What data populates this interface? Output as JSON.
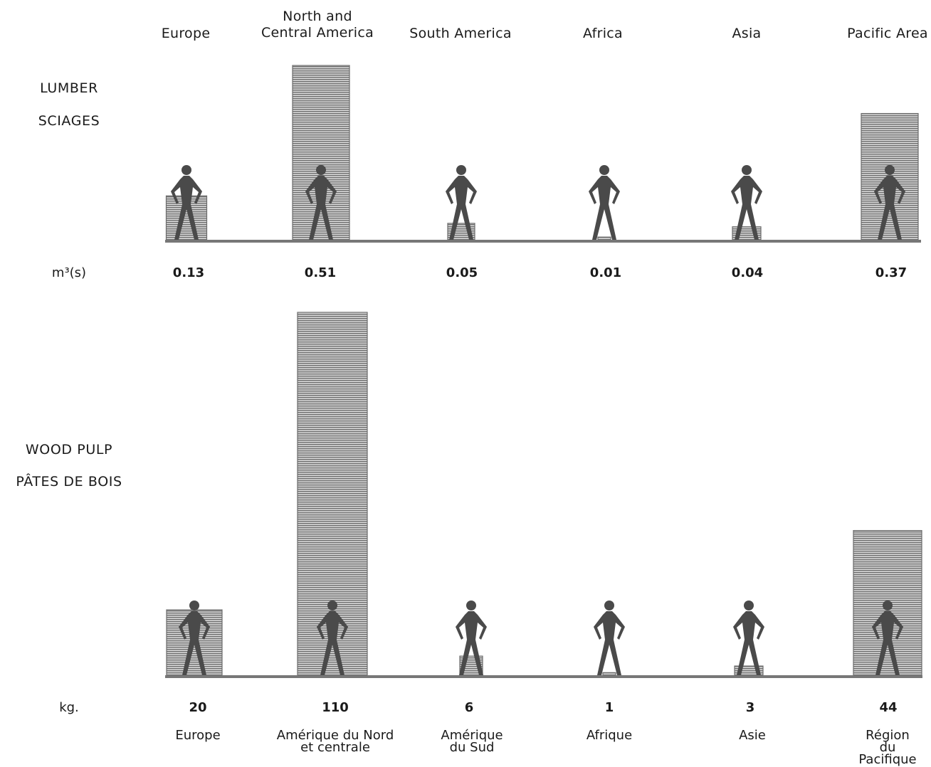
{
  "chart_data": [
    {
      "type": "bar",
      "row_label_line1": "LUMBER",
      "row_label_line2": "SCIAGES",
      "unit": "m³(s)",
      "categories": [
        "Europe",
        "North and\nCentral America",
        "South America",
        "Africa",
        "Asia",
        "Pacific Area"
      ],
      "values": [
        0.13,
        0.51,
        0.05,
        0.01,
        0.04,
        0.37
      ],
      "value_labels": [
        "0.13",
        "0.51",
        "0.05",
        "0.01",
        "0.04",
        "0.37"
      ],
      "bar_color": "#8a8a8a"
    },
    {
      "type": "bar",
      "row_label_line1": "WOOD PULP",
      "row_label_line2": "PÂTES DE BOIS",
      "unit": "kg.",
      "categories": [
        "Europe",
        "Amérique du Nord\net centrale",
        "Amérique\ndu Sud",
        "Afrique",
        "Asie",
        "Région du\nPacifique"
      ],
      "values": [
        20,
        110,
        6,
        1,
        3,
        44
      ],
      "value_labels": [
        "20",
        "110",
        "6",
        "1",
        "3",
        "44"
      ],
      "bar_color": "#8a8a8a"
    }
  ],
  "figure_color": "#4a4a4a"
}
